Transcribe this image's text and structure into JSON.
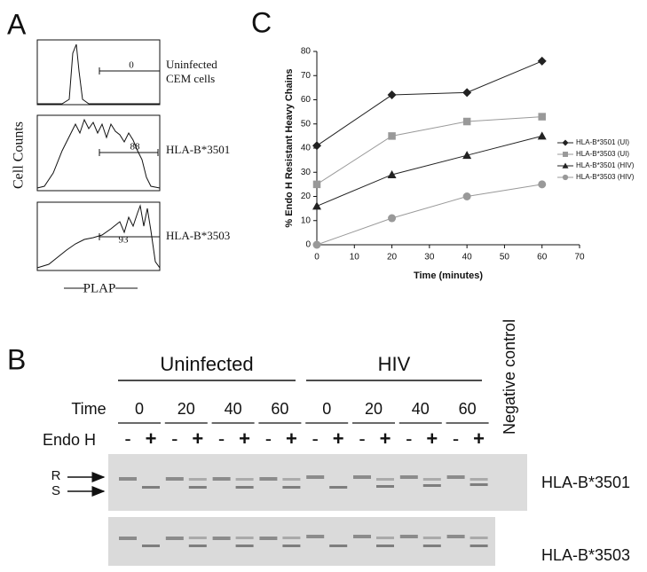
{
  "chart_data": {
    "type": "line",
    "panel": "C",
    "ylabel": "% Endo H Resistant Heavy Chains",
    "xlabel": "Time (minutes)",
    "x": [
      0,
      20,
      40,
      60
    ],
    "series": [
      {
        "name": "HLA-B*3501 (UI)",
        "color": "#222222",
        "marker": "diamond",
        "values": [
          41,
          62,
          63,
          76
        ]
      },
      {
        "name": "HLA-B*3503 (UI)",
        "color": "#999999",
        "marker": "square",
        "values": [
          25,
          45,
          51,
          53
        ]
      },
      {
        "name": "HLA-B*3501 (HIV)",
        "color": "#222222",
        "marker": "triangle",
        "values": [
          16,
          29,
          37,
          45
        ]
      },
      {
        "name": "HLA-B*3503 (HIV)",
        "color": "#999999",
        "marker": "circle",
        "values": [
          0,
          11,
          20,
          25
        ]
      }
    ],
    "xlim": [
      0,
      70
    ],
    "xticks": [
      0,
      10,
      20,
      30,
      40,
      50,
      60,
      70
    ],
    "ylim": [
      0,
      80
    ],
    "yticks": [
      0,
      10,
      20,
      30,
      40,
      50,
      60,
      70,
      80
    ],
    "legend": "right"
  },
  "panel_a": {
    "letter": "A",
    "ylabel": "Cell Counts",
    "xlabel": "PLAP",
    "plots": [
      {
        "label": [
          "Uninfected",
          "CEM cells"
        ],
        "gate": 0
      },
      {
        "label": [
          "HLA-B*3501"
        ],
        "gate": 88
      },
      {
        "label": [
          "HLA-B*3503"
        ],
        "gate": 93
      }
    ]
  },
  "panel_b": {
    "letter": "B",
    "time_label": "Time",
    "endo_label": "Endo H",
    "groups": [
      {
        "label": "Uninfected",
        "times": [
          {
            "time": "0",
            "signs": [
              "-",
              "+"
            ]
          },
          {
            "time": "20",
            "signs": [
              "-",
              "+"
            ]
          },
          {
            "time": "40",
            "signs": [
              "-",
              "+"
            ]
          },
          {
            "time": "60",
            "signs": [
              "-",
              "+"
            ]
          }
        ]
      },
      {
        "label": "HIV",
        "times": [
          {
            "time": "0",
            "signs": [
              "-",
              "+"
            ]
          },
          {
            "time": "20",
            "signs": [
              "-",
              "+"
            ]
          },
          {
            "time": "40",
            "signs": [
              "-",
              "+"
            ]
          },
          {
            "time": "60",
            "signs": [
              "-",
              "+"
            ]
          }
        ]
      }
    ],
    "negative_control": "Negative control",
    "band_labels": [
      "R",
      "S"
    ],
    "gels": [
      "HLA-B*3501",
      "HLA-B*3503"
    ]
  }
}
